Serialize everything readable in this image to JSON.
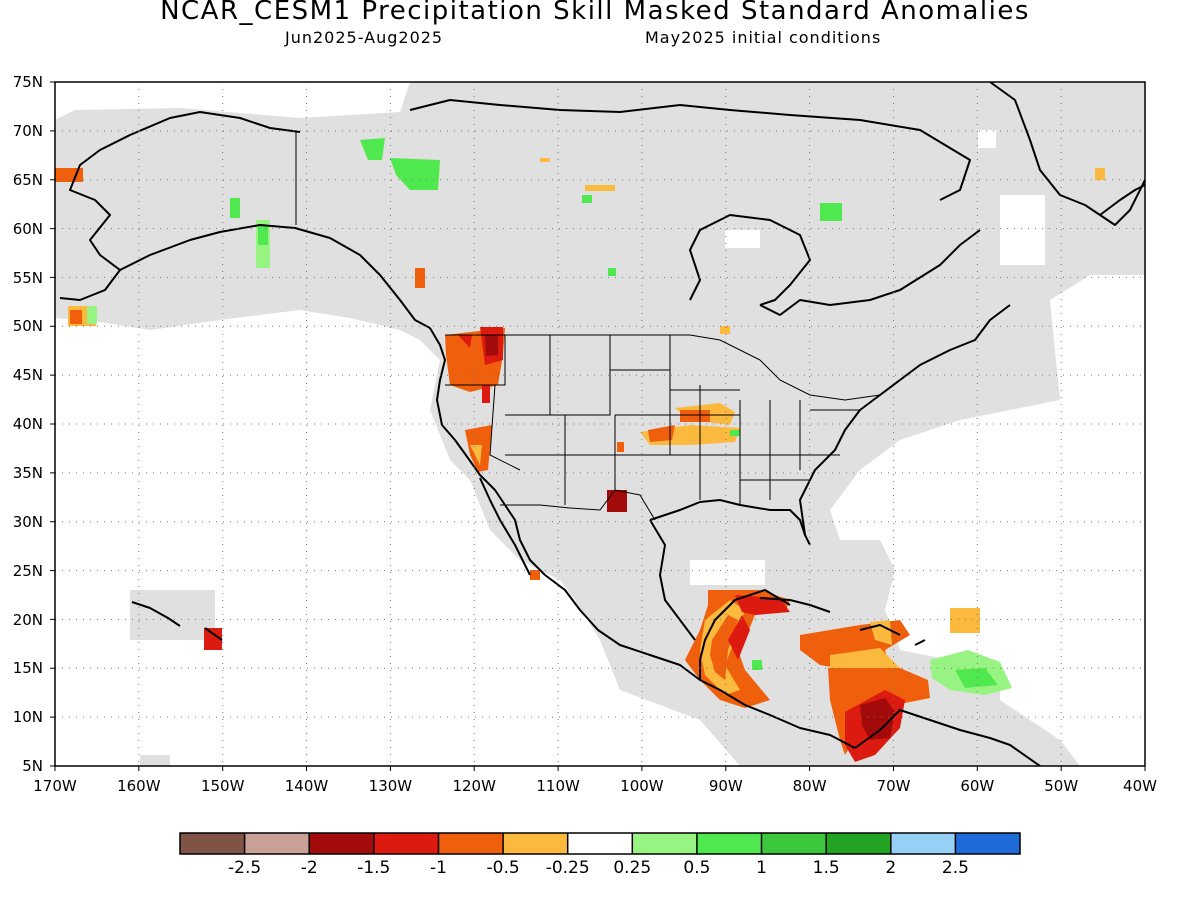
{
  "title": "NCAR_CESM1 Precipitation Skill Masked Standard Anomalies",
  "subtitle_left": "Jun2025-Aug2025",
  "subtitle_right": "May2025 initial conditions",
  "map": {
    "lat_labels": [
      "75N",
      "70N",
      "65N",
      "60N",
      "55N",
      "50N",
      "45N",
      "40N",
      "35N",
      "30N",
      "25N",
      "20N",
      "15N",
      "10N",
      "5N"
    ],
    "lon_labels": [
      "170W",
      "160W",
      "150W",
      "140W",
      "130W",
      "120W",
      "110W",
      "100W",
      "90W",
      "80W",
      "70W",
      "60W",
      "50W",
      "40W"
    ],
    "extent": {
      "lon_min": -170,
      "lon_max": -40,
      "lat_min": 5,
      "lat_max": 75
    },
    "grid": "dotted",
    "mask_color": "#e0e0e0",
    "coastline_color": "#000000"
  },
  "legend": {
    "colors": [
      "#7f5346",
      "#c9a095",
      "#a30a0a",
      "#dc1a10",
      "#f05f0b",
      "#fbb93e",
      "#ffffff",
      "#98f482",
      "#50e84f",
      "#3cc73c",
      "#22a321",
      "#96d0f5",
      "#1e6ad8"
    ],
    "labels": [
      "-2.5",
      "-2",
      "-1.5",
      "-1",
      "-0.5",
      "-0.25",
      "0.25",
      "0.5",
      "1",
      "1.5",
      "2",
      "2.5"
    ]
  }
}
